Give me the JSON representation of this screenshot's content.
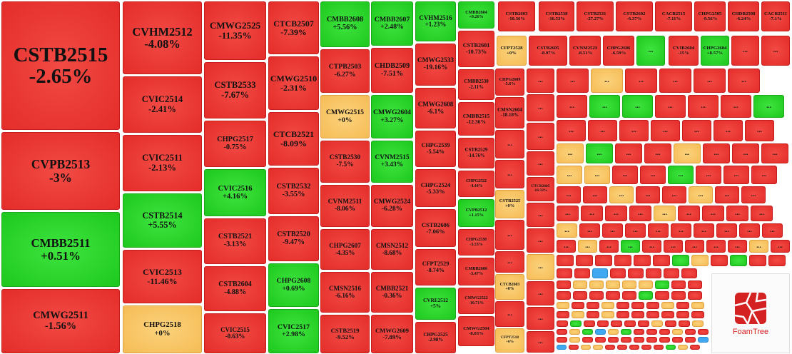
{
  "tiles": [
    {
      "code": "CSTB2515",
      "change": "-2.65%"
    },
    {
      "code": "CVPB2513",
      "change": "-3%"
    },
    {
      "code": "CMBB2511",
      "change": "+0.51%"
    },
    {
      "code": "CMWG2511",
      "change": "-1.56%"
    },
    {
      "code": "CVHM2512",
      "change": "-4.08%"
    },
    {
      "code": "CVIC2514",
      "change": "-2.41%"
    },
    {
      "code": "CVIC2511",
      "change": "-2.13%"
    },
    {
      "code": "CSTB2514",
      "change": "+5.55%"
    },
    {
      "code": "CVIC2513",
      "change": "-11.46%"
    },
    {
      "code": "CHPG2518",
      "change": "+0%"
    },
    {
      "code": "CMWG2525",
      "change": "-11.35%"
    },
    {
      "code": "CSTB2533",
      "change": "-7.67%"
    },
    {
      "code": "CHPG2517",
      "change": "-0.75%"
    },
    {
      "code": "CVIC2516",
      "change": "+4.16%"
    },
    {
      "code": "CSTB2521",
      "change": "-3.13%"
    },
    {
      "code": "CSTB2604",
      "change": "-4.88%"
    },
    {
      "code": "CVIC2515",
      "change": "-0.63%"
    },
    {
      "code": "CTCB2507",
      "change": "-7.39%"
    },
    {
      "code": "CMWG2510",
      "change": "-2.31%"
    },
    {
      "code": "CTCB2521",
      "change": "-8.09%"
    },
    {
      "code": "CSTB2532",
      "change": "-3.55%"
    },
    {
      "code": "CSTB2520",
      "change": "-9.47%"
    },
    {
      "code": "CHPG2608",
      "change": "+0.69%"
    },
    {
      "code": "CVIC2517",
      "change": "+2.98%"
    },
    {
      "code": "CMBB2608",
      "change": "+5.56%"
    },
    {
      "code": "CTPB2503",
      "change": "-6.27%"
    },
    {
      "code": "CMWG2515",
      "change": "+0%"
    },
    {
      "code": "CSTB2530",
      "change": "-7.5%"
    },
    {
      "code": "CVNM2511",
      "change": "-8.06%"
    },
    {
      "code": "CHPG2607",
      "change": "-4.35%"
    },
    {
      "code": "CMSN2516",
      "change": "-6.16%"
    },
    {
      "code": "CSTB2519",
      "change": "-9.52%"
    },
    {
      "code": "CMBB2607",
      "change": "+2.48%"
    },
    {
      "code": "CHDB2509",
      "change": "-7.51%"
    },
    {
      "code": "CMWG2604",
      "change": "+3.27%"
    },
    {
      "code": "CVNM2515",
      "change": "+3.43%"
    },
    {
      "code": "CMWG2524",
      "change": "-6.28%"
    },
    {
      "code": "CMSN2512",
      "change": "-8.68%"
    },
    {
      "code": "CMBB2521",
      "change": "-0.36%"
    },
    {
      "code": "CMWG2609",
      "change": "-7.89%"
    },
    {
      "code": "CVHM2516",
      "change": "+1.23%"
    },
    {
      "code": "CMWG2533",
      "change": "-19.16%"
    },
    {
      "code": "CMWG2608",
      "change": "-6.1%"
    },
    {
      "code": "CHPG2539",
      "change": "-5.54%"
    },
    {
      "code": "CHPG2524",
      "change": "-5.33%"
    },
    {
      "code": "CSTB2606",
      "change": "-7.06%"
    },
    {
      "code": "CFPT2529",
      "change": "-8.74%"
    },
    {
      "code": "CVRE2512",
      "change": "+5%"
    },
    {
      "code": "CHPG2525",
      "change": "-2.98%"
    },
    {
      "code": "CMBB2604",
      "change": "+9.26%"
    },
    {
      "code": "CSTB2601",
      "change": "-10.73%"
    },
    {
      "code": "CMBB2530",
      "change": "-2.11%"
    },
    {
      "code": "CMBB2515",
      "change": "-12.36%"
    },
    {
      "code": "CSTB2529",
      "change": "-14.76%"
    },
    {
      "code": "CHPG2522",
      "change": "-4.44%"
    },
    {
      "code": "CVPB2512",
      "change": "+1.15%"
    },
    {
      "code": "CHPG2538",
      "change": "-3.53%"
    },
    {
      "code": "CMBB2606",
      "change": "-3.47%"
    },
    {
      "code": "CMWG2522",
      "change": "-10.71%"
    },
    {
      "code": "CMWG2504",
      "change": "-8.03%"
    },
    {
      "code": "CSTB2603",
      "change": "-10.36%"
    },
    {
      "code": "CSTB2538",
      "change": "-16.53%"
    },
    {
      "code": "CSTB2531",
      "change": "-27.27%"
    },
    {
      "code": "CSTB2602",
      "change": "-6.37%"
    },
    {
      "code": "CACB2515",
      "change": "-7.11%"
    },
    {
      "code": "CHPG2505",
      "change": "-9.56%"
    },
    {
      "code": "CHDB2508",
      "change": "-6.24%"
    },
    {
      "code": "CACB2511",
      "change": "-7.1%"
    },
    {
      "code": "CFPT2528",
      "change": "+0%"
    },
    {
      "code": "CSTB2605",
      "change": "-8.97%"
    },
    {
      "code": "CVNM2523",
      "change": "-8.51%"
    },
    {
      "code": "CHPG2606",
      "change": "-6.59%"
    },
    {
      "code": "CVIB2604",
      "change": "-15%"
    },
    {
      "code": "CHPG2604",
      "change": "+8.57%"
    },
    {
      "code": "CHPG2609",
      "change": "-5.6%"
    },
    {
      "code": "CMSN2604",
      "change": "-18.18%"
    },
    {
      "code": "CSTB2525",
      "change": "+0%"
    },
    {
      "code": "CTCB2603",
      "change": "+0%"
    },
    {
      "code": "CFPT2518",
      "change": "+0%"
    },
    {
      "code": "CTCB2605",
      "change": "-18.59%"
    }
  ],
  "more_label": "...",
  "logo_text": "FoamTree"
}
